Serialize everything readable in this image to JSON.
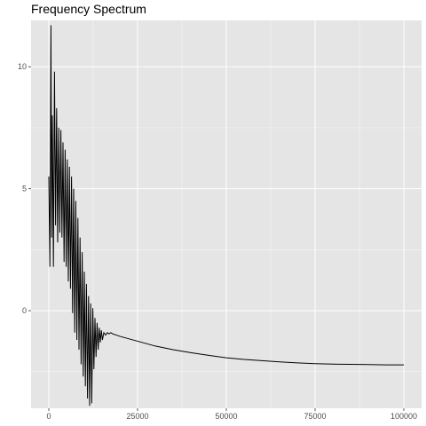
{
  "chart_data": {
    "type": "line",
    "title": "Frequency Spectrum",
    "xlabel": "",
    "ylabel": "",
    "xlim": [
      -5000,
      105000
    ],
    "ylim": [
      -4.0,
      11.9
    ],
    "x_ticks": [
      0,
      25000,
      50000,
      75000,
      100000
    ],
    "x_tick_labels": [
      "0",
      "25000",
      "50000",
      "75000",
      "100000"
    ],
    "y_ticks": [
      0,
      5,
      10
    ],
    "y_tick_labels": [
      "0",
      "5",
      "10"
    ],
    "grid": true,
    "legend": "none",
    "colors": {
      "panel_background": "#e5e5e5",
      "grid_major": "#ffffff",
      "line": "#000000",
      "tick_label": "#4d4d4d"
    },
    "series": [
      {
        "x": [
          0,
          300,
          600,
          800,
          1000,
          1300,
          1600,
          1900,
          2200,
          2500,
          2800,
          3100,
          3400,
          3700,
          4000,
          4300,
          4600,
          4900,
          5200,
          5500,
          5800,
          6100,
          6400,
          6700,
          7000,
          7300,
          7600,
          7900,
          8200,
          8500,
          8800,
          9100,
          9400,
          9700,
          10000,
          10300,
          10600,
          10900,
          11200,
          11500,
          11800,
          12100,
          12400,
          12700,
          13000,
          13300,
          13600,
          13900,
          14200,
          14500,
          14800,
          15100,
          15500,
          16000,
          16500,
          17000,
          17500,
          18000,
          19000,
          20000,
          22500,
          25000,
          30000,
          35000,
          40000,
          45000,
          50000,
          55000,
          60000,
          65000,
          70000,
          75000,
          80000,
          85000,
          90000,
          95000,
          100000
        ],
        "y": [
          5.5,
          1.8,
          11.7,
          3.0,
          8.0,
          1.8,
          9.8,
          3.5,
          8.3,
          2.8,
          7.5,
          3.2,
          7.4,
          3.0,
          6.9,
          2.0,
          6.6,
          1.8,
          6.2,
          1.2,
          5.9,
          0.9,
          5.5,
          -0.1,
          5.0,
          -0.9,
          4.5,
          -1.2,
          3.8,
          -1.6,
          3.0,
          -2.2,
          2.4,
          -2.7,
          1.6,
          -3.1,
          1.1,
          -3.6,
          0.6,
          -3.9,
          0.3,
          -3.8,
          0.1,
          -2.4,
          -0.3,
          -1.9,
          -0.5,
          -1.6,
          -0.7,
          -1.3,
          -0.8,
          -1.2,
          -0.9,
          -1.0,
          -0.9,
          -0.95,
          -0.9,
          -0.95,
          -1.0,
          -1.05,
          -1.15,
          -1.25,
          -1.45,
          -1.6,
          -1.72,
          -1.83,
          -1.93,
          -2.0,
          -2.05,
          -2.1,
          -2.14,
          -2.17,
          -2.19,
          -2.2,
          -2.21,
          -2.22,
          -2.22
        ]
      }
    ]
  }
}
